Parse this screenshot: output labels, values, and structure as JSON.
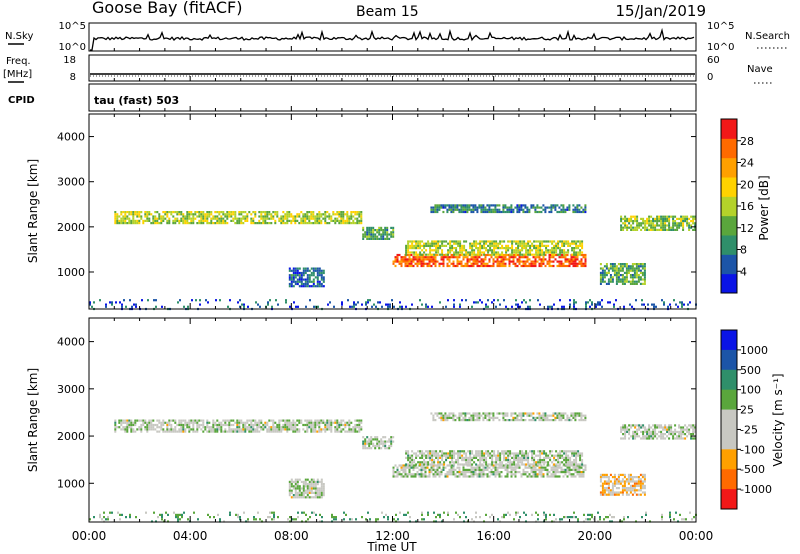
{
  "header": {
    "site": "Goose Bay (fitACF)",
    "beam": "Beam 15",
    "date": "15/Jan/2019"
  },
  "top_panels": {
    "nsky_label": "N.Sky",
    "nsearch_label": "N.Search",
    "nsky_ticks": [
      "10^5",
      "10^0"
    ],
    "nsearch_ticks": [
      "10^5",
      "10^0"
    ],
    "freq_label": "Freq.",
    "freq_unit": "[MHz]",
    "freq_ticks": [
      "18",
      "8"
    ],
    "nave_label": "Nave",
    "nave_ticks": [
      "60",
      "0"
    ],
    "cpid_label": "CPID",
    "cpid_value": "tau (fast) 503"
  },
  "chart_data": [
    {
      "type": "heatmap",
      "name": "power",
      "xlabel": "",
      "ylabel": "Slant Range [km]",
      "x_ticks": [
        "00:00",
        "04:00",
        "08:00",
        "12:00",
        "16:00",
        "20:00",
        "00:00"
      ],
      "x_range_hours": [
        0,
        24
      ],
      "y_ticks": [
        1000,
        2000,
        3000,
        4000
      ],
      "y_range_km": [
        180,
        4500
      ],
      "colorbar_label": "Power [dB]",
      "colorbar_ticks": [
        "28",
        "24",
        "20",
        "16",
        "12",
        "8",
        "4"
      ],
      "colorbar_range": [
        0,
        32
      ],
      "colors": [
        "#0a14e6",
        "#1c55a8",
        "#2f8f6a",
        "#5aa63c",
        "#b4d22a",
        "#ffd200",
        "#ffa000",
        "#ff6a00",
        "#f21818"
      ],
      "bands": [
        {
          "t": [
            1.0,
            10.8
          ],
          "r": [
            2100,
            2350
          ],
          "level": 0.5
        },
        {
          "t": [
            10.8,
            12.0
          ],
          "r": [
            1750,
            2000
          ],
          "level": 0.35
        },
        {
          "t": [
            12.0,
            19.6
          ],
          "r": [
            1150,
            1400
          ],
          "level": 0.85
        },
        {
          "t": [
            12.5,
            19.5
          ],
          "r": [
            1400,
            1700
          ],
          "level": 0.5
        },
        {
          "t": [
            13.5,
            19.6
          ],
          "r": [
            2350,
            2500
          ],
          "level": 0.25
        },
        {
          "t": [
            20.2,
            22.0
          ],
          "r": [
            750,
            1200
          ],
          "level": 0.35
        },
        {
          "t": [
            21.0,
            24.0
          ],
          "r": [
            1950,
            2250
          ],
          "level": 0.45
        },
        {
          "t": [
            7.9,
            9.3
          ],
          "r": [
            700,
            1100
          ],
          "level": 0.2
        },
        {
          "t": [
            0.0,
            24.0
          ],
          "r": [
            200,
            400
          ],
          "level": 0.15
        }
      ]
    },
    {
      "type": "heatmap",
      "name": "velocity",
      "xlabel": "Time UT",
      "ylabel": "Slant Range [km]",
      "x_ticks": [
        "00:00",
        "04:00",
        "08:00",
        "12:00",
        "16:00",
        "20:00",
        "00:00"
      ],
      "x_range_hours": [
        0,
        24
      ],
      "y_ticks": [
        1000,
        2000,
        3000,
        4000
      ],
      "y_range_km": [
        180,
        4500
      ],
      "colorbar_label": "Velocity [m s⁻¹]",
      "colorbar_ticks": [
        "1000",
        "500",
        "100",
        "25",
        "-25",
        "-100",
        "-500",
        "-1000"
      ],
      "colors": [
        "#0a14e6",
        "#1c55a8",
        "#2f8f6a",
        "#5aa63c",
        "#c8c8c2",
        "#c8c8c2",
        "#ffa000",
        "#ff6a00",
        "#f21818"
      ],
      "bands": [
        {
          "t": [
            1.0,
            10.8
          ],
          "r": [
            2100,
            2350
          ],
          "level": 0.5
        },
        {
          "t": [
            10.8,
            12.0
          ],
          "r": [
            1750,
            2000
          ],
          "level": 0.5
        },
        {
          "t": [
            12.0,
            19.6
          ],
          "r": [
            1150,
            1400
          ],
          "level": 0.5
        },
        {
          "t": [
            12.5,
            19.5
          ],
          "r": [
            1400,
            1700
          ],
          "level": 0.5
        },
        {
          "t": [
            13.5,
            19.6
          ],
          "r": [
            2350,
            2500
          ],
          "level": 0.5
        },
        {
          "t": [
            20.2,
            22.0
          ],
          "r": [
            750,
            1200
          ],
          "level": 0.35
        },
        {
          "t": [
            21.0,
            24.0
          ],
          "r": [
            1950,
            2250
          ],
          "level": 0.5
        },
        {
          "t": [
            7.9,
            9.3
          ],
          "r": [
            700,
            1100
          ],
          "level": 0.5
        },
        {
          "t": [
            0.0,
            24.0
          ],
          "r": [
            200,
            400
          ],
          "level": 0.62
        }
      ]
    }
  ]
}
